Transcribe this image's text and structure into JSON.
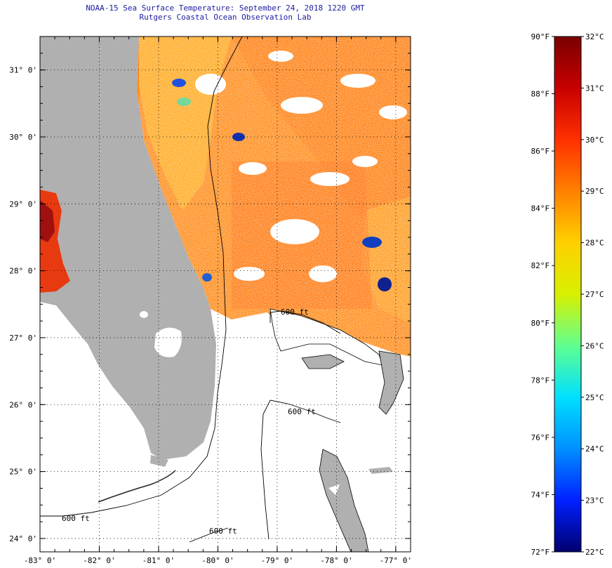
{
  "header": {
    "title_line1": "NOAA-15 Sea Surface Temperature:  September 24, 2018 1220 GMT",
    "title_line2": "Rutgers Coastal Ocean Observation Lab"
  },
  "map": {
    "lon_range": [
      -83,
      -76.75
    ],
    "lat_range": [
      23.8,
      31.5
    ],
    "lat_labels": [
      {
        "lat": 31,
        "text": "31° 0'"
      },
      {
        "lat": 30,
        "text": "30° 0'"
      },
      {
        "lat": 29,
        "text": "29° 0'"
      },
      {
        "lat": 28,
        "text": "28° 0'"
      },
      {
        "lat": 27,
        "text": "27° 0'"
      },
      {
        "lat": 26,
        "text": "26° 0'"
      },
      {
        "lat": 25,
        "text": "25° 0'"
      },
      {
        "lat": 24,
        "text": "24° 0'"
      }
    ],
    "lon_labels": [
      {
        "lon": -83,
        "text": "-83° 0'"
      },
      {
        "lon": -82,
        "text": "-82° 0'"
      },
      {
        "lon": -81,
        "text": "-81° 0'"
      },
      {
        "lon": -80,
        "text": "-80° 0'"
      },
      {
        "lon": -79,
        "text": "-79° 0'"
      },
      {
        "lon": -78,
        "text": "-78° 0'"
      },
      {
        "lon": -77,
        "text": "-77° 0'"
      }
    ],
    "isobath_label": "600 ft",
    "land_color": "#b0b0b0",
    "cloud_color": "#ffffff"
  },
  "colorbar": {
    "colors": [
      "#7a0000",
      "#c80000",
      "#ff3000",
      "#ff8000",
      "#ffd000",
      "#d8f000",
      "#60ff90",
      "#00e0ff",
      "#0090ff",
      "#0020ff",
      "#000070"
    ],
    "fahrenheit": [
      "90°F",
      "88°F",
      "86°F",
      "84°F",
      "82°F",
      "80°F",
      "78°F",
      "76°F",
      "74°F",
      "72°F"
    ],
    "celsius": [
      "32°C",
      "31°C",
      "30°C",
      "29°C",
      "28°C",
      "27°C",
      "26°C",
      "25°C",
      "24°C",
      "23°C",
      "22°C"
    ]
  }
}
